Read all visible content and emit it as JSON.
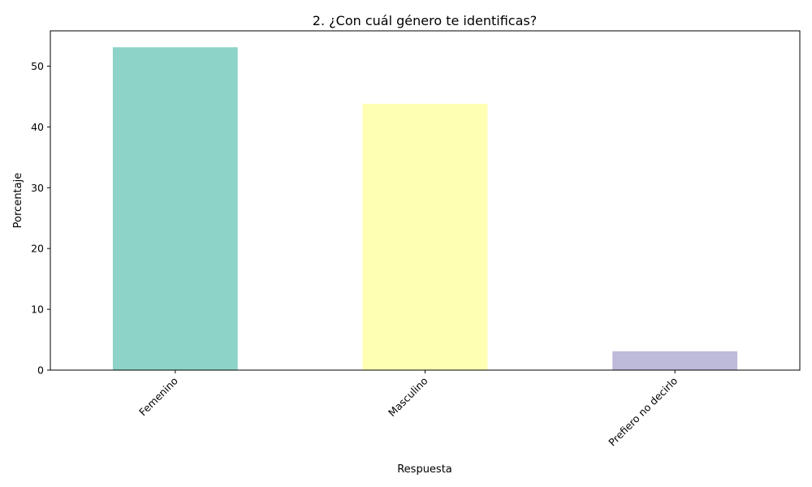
{
  "chart_data": {
    "type": "bar",
    "title": "2. ¿Con cuál género te identificas?",
    "xlabel": "Respuesta",
    "ylabel": "Porcentaje",
    "categories": [
      "Femenino",
      "Masculino",
      "Prefiero no decirlo"
    ],
    "values": [
      53.1,
      43.8,
      3.1
    ],
    "colors": [
      "#8dd3c7",
      "#ffffb3",
      "#bebada"
    ],
    "ylim": [
      0,
      55.8
    ],
    "yticks": [
      0,
      10,
      20,
      30,
      40,
      50
    ],
    "grid": false,
    "legend": "none"
  }
}
